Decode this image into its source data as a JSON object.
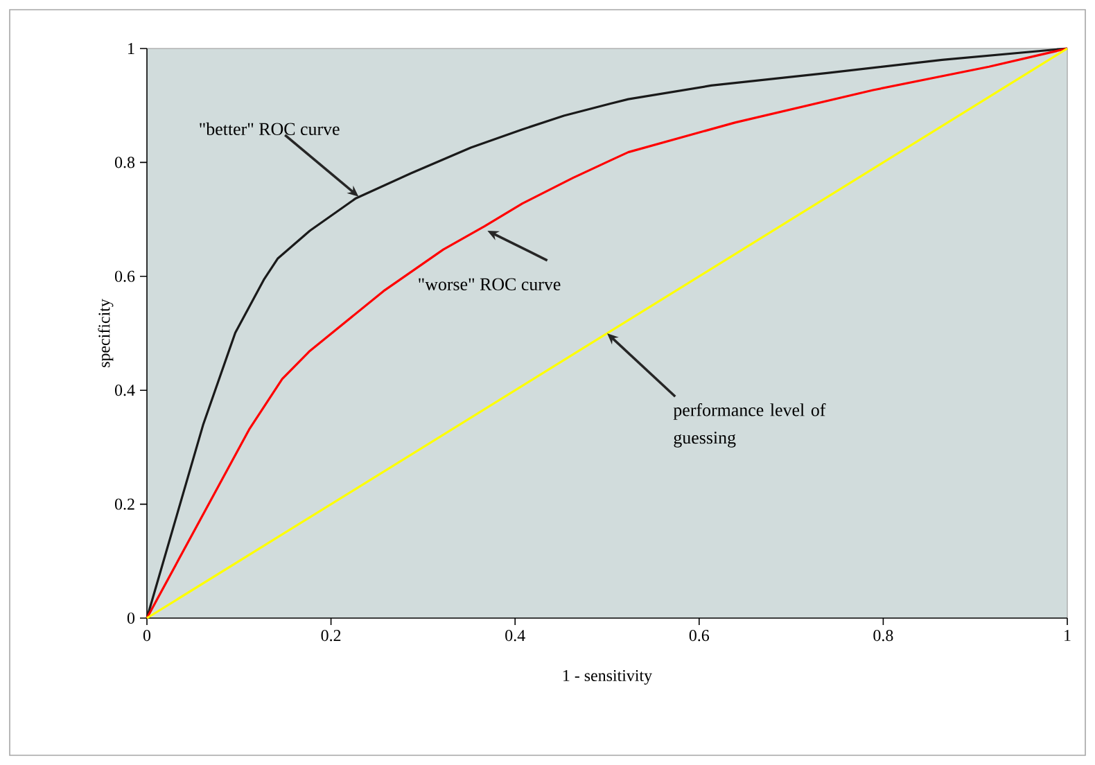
{
  "chart_data": {
    "type": "line",
    "xlabel": "1 - sensitivity",
    "ylabel": "specificity",
    "xlim": [
      0,
      1
    ],
    "ylim": [
      0,
      1
    ],
    "xticks": [
      0,
      0.2,
      0.4,
      0.6,
      0.8,
      1
    ],
    "yticks": [
      0,
      0.2,
      0.4,
      0.6,
      0.8,
      1
    ],
    "marker": "none",
    "line_style": "solid",
    "series": [
      {
        "color": "#1a1a1a",
        "x": [
          0,
          0.061,
          0.096,
          0.127,
          0.142,
          0.177,
          0.227,
          0.287,
          0.352,
          0.408,
          0.453,
          0.503,
          0.523,
          0.613,
          0.739,
          0.864,
          1
        ],
        "values": [
          0,
          0.339,
          0.501,
          0.594,
          0.631,
          0.68,
          0.737,
          0.781,
          0.826,
          0.858,
          0.882,
          0.903,
          0.911,
          0.935,
          0.957,
          0.98,
          1
        ]
      },
      {
        "color": "#ff0000",
        "x": [
          0,
          0.111,
          0.147,
          0.177,
          0.257,
          0.322,
          0.367,
          0.408,
          0.463,
          0.503,
          0.523,
          0.639,
          0.789,
          0.915,
          1
        ],
        "values": [
          0,
          0.331,
          0.42,
          0.469,
          0.574,
          0.647,
          0.688,
          0.728,
          0.773,
          0.803,
          0.818,
          0.87,
          0.927,
          0.968,
          1
        ]
      },
      {
        "color": "#ffff00",
        "x": [
          0,
          1
        ],
        "values": [
          0,
          1
        ]
      }
    ],
    "annotations": [
      {
        "text": "\"better\" ROC curve",
        "x": 0.23,
        "y": 0.74
      },
      {
        "text": "\"worse\" ROC curve",
        "x": 0.37,
        "y": 0.68
      },
      {
        "text": "performance level of guessing",
        "x": 0.5,
        "y": 0.5
      }
    ]
  }
}
